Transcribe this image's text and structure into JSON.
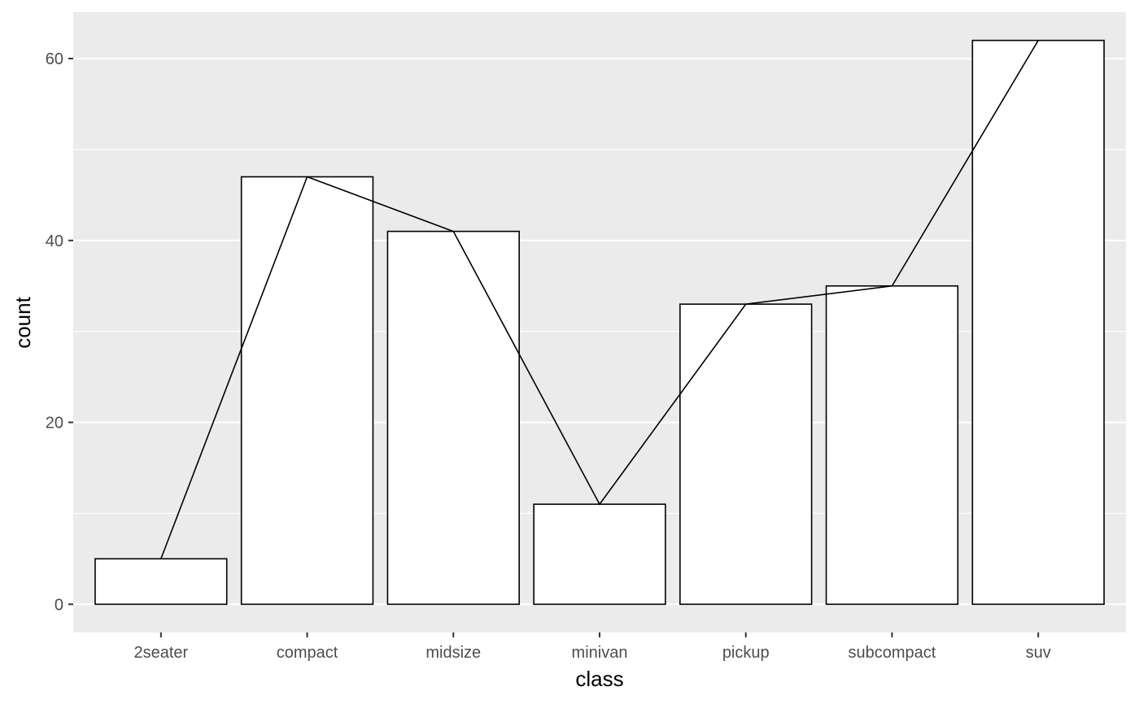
{
  "chart_data": {
    "type": "bar",
    "categories": [
      "2seater",
      "compact",
      "midsize",
      "minivan",
      "pickup",
      "subcompact",
      "suv"
    ],
    "values": [
      5,
      47,
      41,
      11,
      33,
      35,
      62
    ],
    "line_overlay": true,
    "title": "",
    "xlabel": "class",
    "ylabel": "count",
    "ylim": [
      -3.1,
      65.1
    ],
    "yticks": [
      0,
      20,
      40,
      60
    ],
    "grid": true,
    "legend": "none",
    "colors": {
      "panel_bg": "#ebebeb",
      "grid": "#ffffff",
      "bar_fill": "#ffffff",
      "bar_stroke": "#000000",
      "line": "#000000",
      "tick_text": "#4d4d4d",
      "tick_mark": "#333333",
      "x_gridline_tint": "#ffff00"
    }
  }
}
